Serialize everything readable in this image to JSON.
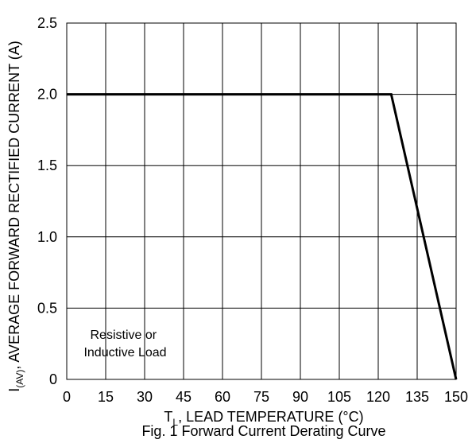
{
  "chart_data": {
    "type": "line",
    "xlabel": {
      "prefix": "T",
      "subscript": "L",
      "suffix": ", LEAD TEMPERATURE (°C)"
    },
    "ylabel": {
      "prefix": "I",
      "subscript": "(AV)",
      "suffix": ", AVERAGE FORWARD RECTIFIED CURRENT (A)"
    },
    "caption": "Fig. 1 Forward Current Derating Curve",
    "annotation": [
      "Resistive or",
      "Inductive Load"
    ],
    "x_ticks": [
      "0",
      "15",
      "30",
      "45",
      "60",
      "75",
      "90",
      "105",
      "120",
      "135",
      "150"
    ],
    "y_ticks": [
      "0",
      "0.5",
      "1.0",
      "1.5",
      "2.0",
      "2.5"
    ],
    "xlim": [
      0,
      150
    ],
    "ylim": [
      0,
      2.5
    ],
    "x_major_step": 15,
    "y_major_step": 0.5,
    "grid": true,
    "line_color": "#000000",
    "series": [
      {
        "x": [
          0,
          125,
          150
        ],
        "y": [
          2.0,
          2.0,
          0
        ]
      }
    ]
  }
}
